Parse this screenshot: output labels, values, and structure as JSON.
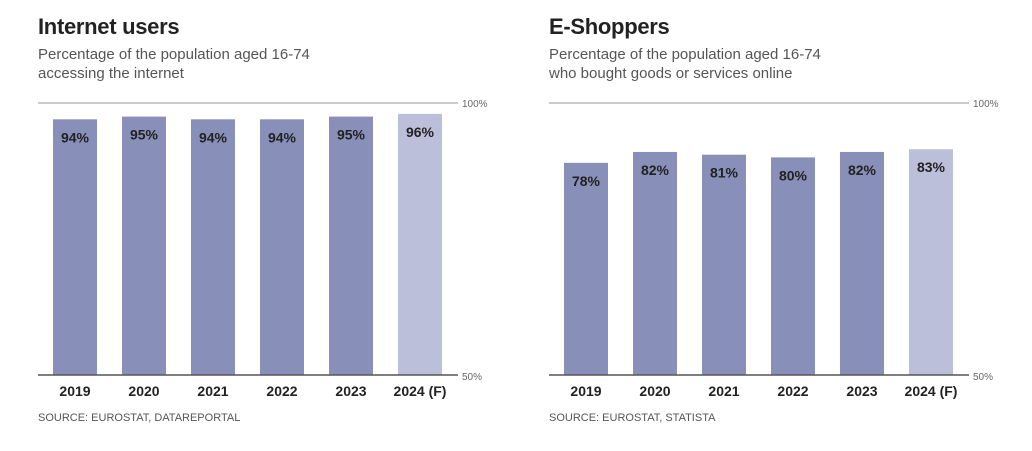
{
  "chart_data": [
    {
      "type": "bar",
      "title": "Internet users",
      "subtitle_lines": [
        "Percentage of the population aged 16-74",
        "accessing the internet"
      ],
      "categories": [
        "2019",
        "2020",
        "2021",
        "2022",
        "2023",
        "2024 (F)"
      ],
      "values": [
        94,
        95,
        94,
        94,
        95,
        96
      ],
      "value_labels": [
        "94%",
        "95%",
        "94%",
        "94%",
        "95%",
        "96%"
      ],
      "forecast": [
        false,
        false,
        false,
        false,
        false,
        true
      ],
      "ylim": [
        0,
        100
      ],
      "ytick_labels": {
        "top": "100%",
        "bottom": "50%"
      },
      "source": "SOURCE: EUROSTAT, DATAREPORTAL"
    },
    {
      "type": "bar",
      "title": "E-Shoppers",
      "subtitle_lines": [
        "Percentage of the population aged 16-74",
        "who bought goods or services online"
      ],
      "categories": [
        "2019",
        "2020",
        "2021",
        "2022",
        "2023",
        "2024 (F)"
      ],
      "values": [
        78,
        82,
        81,
        80,
        82,
        83
      ],
      "value_labels": [
        "78%",
        "82%",
        "81%",
        "80%",
        "82%",
        "83%"
      ],
      "forecast": [
        false,
        false,
        false,
        false,
        false,
        true
      ],
      "ylim": [
        0,
        100
      ],
      "ytick_labels": {
        "top": "100%",
        "bottom": "50%"
      },
      "source": "SOURCE: EUROSTAT, STATISTA"
    }
  ],
  "colors": {
    "bar": "#8890b9",
    "forecast": "#bbbfda",
    "axis": "#555555",
    "gridline": "#bbbbbb"
  }
}
